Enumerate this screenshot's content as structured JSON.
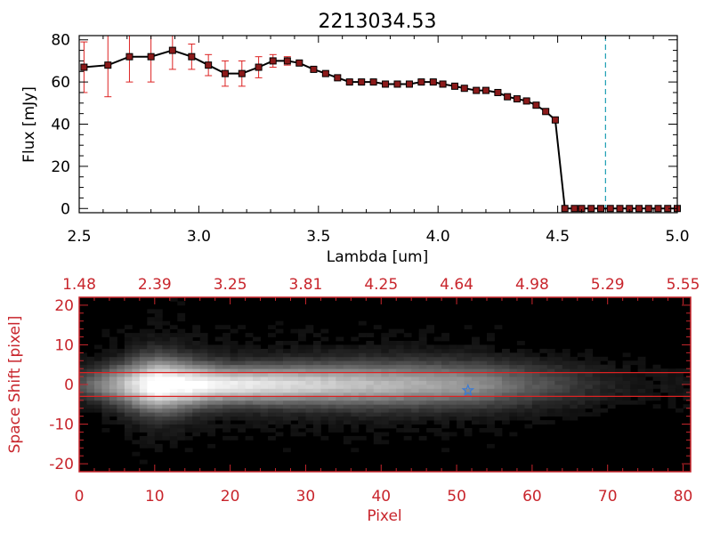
{
  "chart_data": [
    {
      "type": "line",
      "title": "2213034.53",
      "xlabel": "Lambda [um]",
      "ylabel": "Flux [mJy]",
      "xlim": [
        2.5,
        5.0
      ],
      "ylim": [
        -2,
        82
      ],
      "x_ticks": [
        "2.5",
        "3.0",
        "3.5",
        "4.0",
        "4.5",
        "5.0"
      ],
      "y_ticks": [
        "0",
        "20",
        "40",
        "60",
        "80"
      ],
      "grid": false,
      "marker_color": "#8b1a1a",
      "line_color": "#000000",
      "errorbar_color": "#dd2222",
      "reference_line": {
        "x": 4.7,
        "color": "#1e9fb4",
        "style": "dashed"
      },
      "zero_line_color": "#dd2222",
      "series": [
        {
          "x": [
            2.52,
            2.62,
            2.71,
            2.8,
            2.89,
            2.97,
            3.04,
            3.11,
            3.18,
            3.25,
            3.31,
            3.37,
            3.42,
            3.48,
            3.53,
            3.58,
            3.63,
            3.68,
            3.73,
            3.78,
            3.83,
            3.88,
            3.93,
            3.98,
            4.02,
            4.07,
            4.11,
            4.16,
            4.2,
            4.25,
            4.29,
            4.33,
            4.37,
            4.41,
            4.45,
            4.49,
            4.53,
            4.57,
            4.6,
            4.64,
            4.68,
            4.72,
            4.76,
            4.8,
            4.84,
            4.88,
            4.92,
            4.96,
            5.0
          ],
          "y": [
            67,
            68,
            72,
            72,
            75,
            72,
            68,
            64,
            64,
            67,
            70,
            70,
            69,
            66,
            64,
            62,
            60,
            60,
            60,
            59,
            59,
            59,
            60,
            60,
            59,
            58,
            57,
            56,
            56,
            55,
            53,
            52,
            51,
            49,
            46,
            42,
            0,
            0,
            0,
            0,
            0,
            0,
            0,
            0,
            0,
            0,
            0,
            0,
            0
          ],
          "yerr": [
            12,
            15,
            12,
            12,
            9,
            6,
            5,
            6,
            6,
            5,
            3,
            2,
            1,
            1,
            1,
            1,
            1,
            1,
            1,
            1,
            1,
            1,
            1,
            1,
            1,
            1,
            1,
            1,
            1,
            1,
            1,
            1,
            1,
            1,
            1,
            1,
            0,
            0,
            0,
            0,
            0,
            0,
            0,
            0,
            0,
            0,
            0,
            0,
            0
          ]
        }
      ]
    },
    {
      "type": "heatmap",
      "xlabel": "Pixel",
      "ylabel": "Space Shift [pixel]",
      "xlim": [
        0,
        81
      ],
      "ylim": [
        -22,
        22
      ],
      "x_ticks": [
        "0",
        "10",
        "20",
        "30",
        "40",
        "50",
        "60",
        "70",
        "80"
      ],
      "y_ticks": [
        "-20",
        "-10",
        "0",
        "10",
        "20"
      ],
      "top_axis_ticks": [
        "1.48",
        "2.39",
        "3.25",
        "3.81",
        "4.25",
        "4.64",
        "4.98",
        "5.29",
        "5.55"
      ],
      "axis_color": "#c8252c",
      "aperture_lines": [
        3,
        -3
      ],
      "aperture_color": "#dd2222",
      "colormap": "grayscale",
      "marker": {
        "x": 51.5,
        "y": -1.5,
        "color": "#3a7bd5",
        "shape": "star"
      },
      "trace": {
        "x": [
          0,
          5,
          10,
          20,
          30,
          40,
          50,
          55,
          60,
          65,
          70,
          75
        ],
        "y_center": 0,
        "peak": [
          0.25,
          0.6,
          1.0,
          0.85,
          0.75,
          0.65,
          0.55,
          0.45,
          0.3,
          0.2,
          0.1,
          0.05
        ]
      }
    }
  ]
}
